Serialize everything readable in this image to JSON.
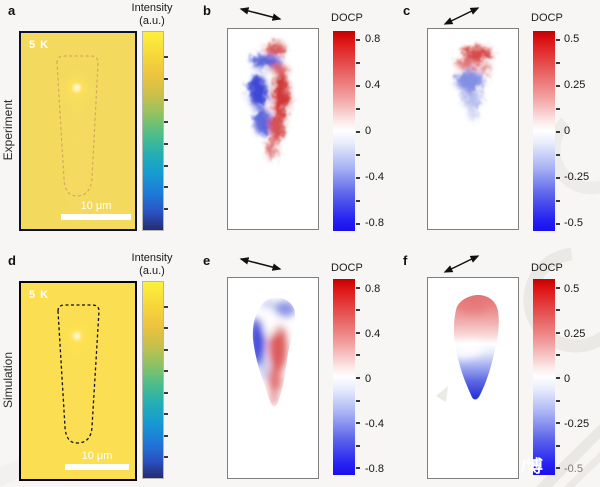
{
  "rows": {
    "experiment": {
      "label": "Experiment"
    },
    "simulation": {
      "label": "Simulation"
    }
  },
  "panels": {
    "a": {
      "letter": "a",
      "temperature": "5 K",
      "scale_bar": "10 μm",
      "colorbar_title_line1": "Intensity",
      "colorbar_title_line2": "(a.u.)"
    },
    "b": {
      "letter": "b",
      "colorbar_title": "DOCP",
      "tick_labels": [
        "0.8",
        "0.4",
        "0",
        "-0.4",
        "-0.8"
      ]
    },
    "c": {
      "letter": "c",
      "colorbar_title": "DOCP",
      "tick_labels": [
        "0.5",
        "0.25",
        "0",
        "-0.25",
        "-0.5"
      ]
    },
    "d": {
      "letter": "d",
      "temperature": "5 K",
      "scale_bar": "10 μm",
      "colorbar_title_line1": "Intensity",
      "colorbar_title_line2": "(a.u.)"
    },
    "e": {
      "letter": "e",
      "colorbar_title": "DOCP",
      "tick_labels": [
        "0.8",
        "0.4",
        "0",
        "-0.4",
        "-0.8"
      ]
    },
    "f": {
      "letter": "f",
      "colorbar_title": "DOCP",
      "tick_labels": [
        "0.5",
        "0.25",
        "0",
        "-0.25",
        "-0.5"
      ]
    }
  },
  "watermark": {
    "text": "/博"
  },
  "colors": {
    "intensity_map_bg_experiment": "#2b4ac0",
    "intensity_map_bg_simulation": "#2a3ed2",
    "intensity_colormap_high": "#fdf03d",
    "intensity_colormap_low": "#252c6e",
    "docp_positive_red": "#c40000",
    "docp_negative_blue": "#1b10ec",
    "panel_border_gray": "#7f7f7f",
    "figure_background": "#f7f6f4"
  },
  "chart_data": [
    {
      "panel": "a",
      "row": "Experiment",
      "type": "heatmap",
      "map": "emission intensity",
      "colormap": "parula-like blue→teal→green→yellow",
      "colorbar_title": "Intensity (a.u.)",
      "colorbar_tick_labels": [],
      "in_map_labels": [
        "5 K"
      ],
      "scale_bar_label": "10 μm",
      "features": "single bright yellow emission spot in upper-center of a faint tapered cone on uniform blue background"
    },
    {
      "panel": "b",
      "row": "Experiment",
      "type": "heatmap",
      "map": "DOCP",
      "colormap": "red-white-blue diverging",
      "colorbar_title": "DOCP",
      "value_range": [
        -0.8,
        0.8
      ],
      "colorbar_tick_labels": [
        "0.8",
        "0.4",
        "0",
        "-0.4",
        "-0.8"
      ],
      "excitation_arrow": "double-headed arrow tilted slightly downward to the right",
      "features": "speckled tapered region: red patch at top, blue (negative) left lobe, red (positive) right lobe, red tail at bottom"
    },
    {
      "panel": "c",
      "row": "Experiment",
      "type": "heatmap",
      "map": "DOCP",
      "colormap": "red-white-blue diverging",
      "colorbar_title": "DOCP",
      "value_range": [
        -0.5,
        0.5
      ],
      "colorbar_tick_labels": [
        "0.5",
        "0.25",
        "0",
        "-0.25",
        "-0.5"
      ],
      "excitation_arrow": "double-headed arrow tilted upward to the right",
      "features": "compact speckled region in upper half: red (positive) band on top, blue (negative) region below"
    },
    {
      "panel": "d",
      "row": "Simulation",
      "type": "heatmap",
      "map": "emission intensity",
      "colormap": "parula-like blue→teal→green→yellow",
      "colorbar_title": "Intensity (a.u.)",
      "colorbar_tick_labels": [],
      "in_map_labels": [
        "5 K"
      ],
      "scale_bar_label": "10 μm",
      "features": "black dashed outline of tapered cone; bright yellow spot at top of cone with teal glow extending downward on royal-blue background"
    },
    {
      "panel": "e",
      "row": "Simulation",
      "type": "heatmap",
      "map": "DOCP",
      "colormap": "red-white-blue diverging",
      "colorbar_title": "DOCP",
      "value_range": [
        -0.8,
        0.8
      ],
      "colorbar_tick_labels": [
        "0.8",
        "0.4",
        "0",
        "-0.4",
        "-0.8"
      ],
      "excitation_arrow": "double-headed arrow tilted slightly downward to the right",
      "features": "smooth carrot-shaped region: strong blue along left edge, red along center-right, pale blue patches at top, pink tip at bottom"
    },
    {
      "panel": "f",
      "row": "Simulation",
      "type": "heatmap",
      "map": "DOCP",
      "colormap": "red-white-blue diverging",
      "colorbar_title": "DOCP",
      "value_range": [
        -0.5,
        0.5
      ],
      "colorbar_tick_labels": [
        "0.5",
        "0.25",
        "0",
        "-0.25",
        "-0.5"
      ],
      "excitation_arrow": "double-headed arrow tilted upward to the right",
      "features": "smooth rounded tapered region: red/pink top, white middle band, blue lower half with deepest blue at bottom tip"
    }
  ]
}
